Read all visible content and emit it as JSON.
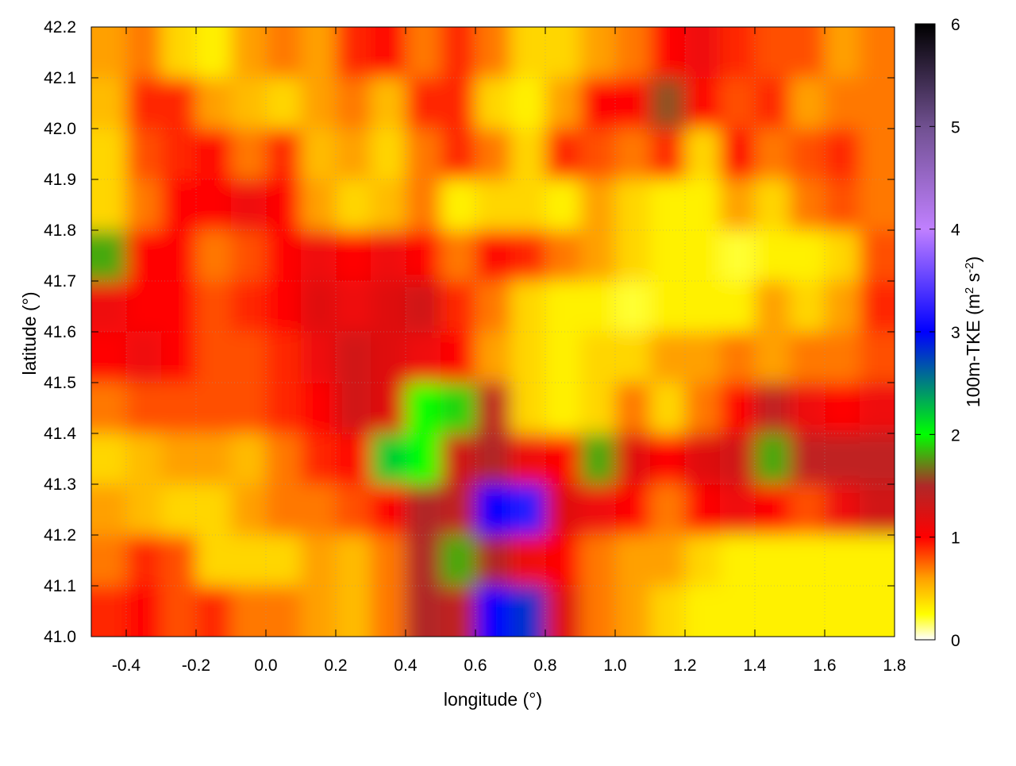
{
  "chart_data": {
    "type": "heatmap",
    "xlabel": "longitude (°)",
    "ylabel": "latitude (°)",
    "colorbar_label": {
      "main": "100m-TKE (m",
      "sup1": "2",
      "mid": " s",
      "sup2": "-2",
      "end": ")"
    },
    "xlim": [
      -0.5,
      1.8
    ],
    "ylim": [
      41.0,
      42.2
    ],
    "zlim": [
      0,
      6
    ],
    "x_ticks": [
      "-0.4",
      "-0.2",
      "0.0",
      "0.2",
      "0.4",
      "0.6",
      "0.8",
      "1.0",
      "1.2",
      "1.4",
      "1.6",
      "1.8"
    ],
    "y_ticks": [
      "41.0",
      "41.1",
      "41.2",
      "41.3",
      "41.4",
      "41.5",
      "41.6",
      "41.7",
      "41.8",
      "41.9",
      "42.0",
      "42.1",
      "42.2"
    ],
    "colorbar_ticks": [
      "0",
      "1",
      "2",
      "3",
      "4",
      "5",
      "6"
    ],
    "grid": true,
    "contours": true,
    "palette": [
      {
        "value": 0,
        "color": "#ffffff"
      },
      {
        "value": 0.25,
        "color": "#ffff00"
      },
      {
        "value": 0.6,
        "color": "#ffa000"
      },
      {
        "value": 1.0,
        "color": "#ff0000"
      },
      {
        "value": 1.5,
        "color": "#b02828"
      },
      {
        "value": 2.0,
        "color": "#00ff00"
      },
      {
        "value": 2.5,
        "color": "#008080"
      },
      {
        "value": 3.0,
        "color": "#0000ff"
      },
      {
        "value": 4.0,
        "color": "#c080ff"
      },
      {
        "value": 5.0,
        "color": "#705090"
      },
      {
        "value": 6.0,
        "color": "#000000"
      }
    ],
    "lon": [
      -0.45,
      -0.35,
      -0.25,
      -0.15,
      -0.05,
      0.05,
      0.15,
      0.25,
      0.35,
      0.45,
      0.55,
      0.65,
      0.75,
      0.85,
      0.95,
      1.05,
      1.15,
      1.25,
      1.35,
      1.45,
      1.55,
      1.65,
      1.75
    ],
    "lat": [
      42.15,
      42.05,
      41.95,
      41.85,
      41.75,
      41.65,
      41.55,
      41.45,
      41.35,
      41.25,
      41.15,
      41.05
    ],
    "z": [
      [
        0.6,
        0.7,
        0.4,
        0.3,
        0.6,
        0.7,
        0.6,
        0.9,
        1.0,
        0.7,
        0.9,
        0.7,
        0.4,
        0.4,
        0.6,
        0.7,
        1.0,
        1.1,
        0.9,
        0.8,
        0.8,
        0.6,
        0.7
      ],
      [
        0.5,
        0.9,
        0.9,
        0.6,
        0.5,
        0.4,
        0.6,
        0.7,
        0.5,
        0.9,
        0.9,
        0.4,
        0.3,
        0.6,
        1.0,
        1.0,
        1.6,
        1.0,
        0.8,
        0.9,
        0.6,
        0.7,
        0.7
      ],
      [
        0.4,
        0.8,
        0.9,
        1.0,
        0.7,
        0.9,
        0.5,
        0.6,
        0.4,
        0.7,
        0.9,
        0.7,
        0.4,
        0.9,
        0.8,
        0.7,
        0.9,
        0.4,
        1.0,
        0.7,
        0.8,
        0.9,
        0.7
      ],
      [
        0.4,
        0.7,
        1.0,
        1.0,
        1.1,
        1.0,
        0.6,
        0.4,
        0.5,
        0.7,
        0.3,
        0.4,
        0.4,
        0.3,
        0.6,
        0.4,
        0.3,
        0.3,
        0.6,
        0.4,
        0.7,
        0.8,
        0.7
      ],
      [
        1.8,
        1.0,
        1.0,
        0.7,
        0.8,
        1.0,
        1.1,
        1.0,
        1.1,
        1.0,
        0.7,
        1.0,
        0.9,
        0.7,
        0.6,
        0.4,
        0.3,
        0.3,
        0.2,
        0.3,
        0.3,
        0.4,
        0.8
      ],
      [
        1.1,
        1.0,
        1.0,
        0.8,
        0.9,
        1.0,
        1.2,
        1.1,
        1.2,
        1.3,
        0.9,
        0.7,
        0.4,
        0.3,
        0.3,
        0.2,
        0.3,
        0.3,
        0.3,
        0.6,
        0.4,
        0.6,
        0.9
      ],
      [
        1.0,
        1.1,
        1.0,
        0.8,
        0.8,
        0.9,
        1.1,
        1.3,
        1.2,
        1.1,
        1.0,
        0.6,
        0.4,
        0.3,
        0.4,
        0.4,
        0.6,
        0.6,
        0.7,
        0.6,
        0.7,
        0.7,
        0.8
      ],
      [
        0.7,
        0.8,
        0.8,
        0.8,
        0.8,
        0.9,
        1.0,
        1.3,
        1.2,
        2.0,
        1.9,
        1.4,
        0.4,
        0.3,
        0.4,
        0.7,
        0.4,
        0.7,
        1.0,
        1.4,
        1.1,
        1.0,
        1.1
      ],
      [
        0.4,
        0.5,
        0.6,
        0.6,
        0.5,
        0.7,
        0.9,
        1.0,
        2.2,
        2.0,
        1.3,
        1.5,
        1.1,
        1.0,
        1.8,
        1.2,
        1.0,
        1.2,
        1.3,
        1.8,
        1.4,
        1.4,
        1.4
      ],
      [
        0.6,
        0.5,
        0.4,
        0.4,
        0.6,
        0.7,
        0.7,
        0.8,
        1.0,
        1.5,
        1.4,
        3.0,
        3.2,
        1.2,
        1.1,
        1.0,
        0.7,
        1.0,
        1.1,
        1.0,
        0.8,
        1.1,
        1.3
      ],
      [
        0.7,
        0.9,
        0.8,
        0.4,
        0.4,
        0.4,
        0.6,
        0.5,
        0.7,
        1.5,
        1.8,
        1.5,
        1.1,
        1.0,
        0.7,
        0.6,
        0.6,
        0.4,
        0.3,
        0.3,
        0.3,
        0.3,
        0.3
      ],
      [
        0.9,
        1.0,
        0.8,
        0.9,
        0.7,
        0.7,
        0.6,
        0.5,
        0.7,
        1.5,
        1.4,
        3.0,
        2.8,
        1.2,
        0.7,
        0.6,
        0.4,
        0.3,
        0.3,
        0.3,
        0.3,
        0.3,
        0.3
      ]
    ]
  }
}
